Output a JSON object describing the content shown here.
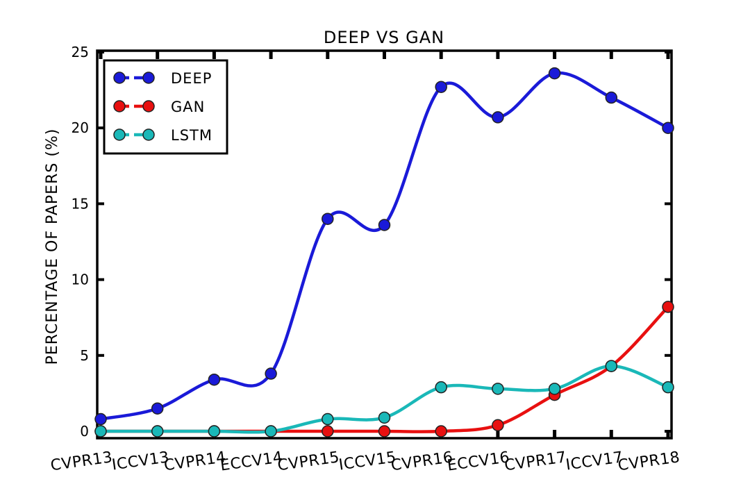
{
  "chart_data": {
    "type": "line",
    "title": "DEEP VS GAN",
    "xlabel": "",
    "ylabel": "PERCENTAGE OF PAPERS (%)",
    "ylim": [
      0,
      25
    ],
    "yticks": [
      0,
      5,
      10,
      15,
      20,
      25
    ],
    "grid": false,
    "legend_position": "top-left",
    "categories": [
      "CVPR13",
      "ICCV13",
      "CVPR14",
      "ECCV14",
      "CVPR15",
      "ICCV15",
      "CVPR16",
      "ECCV16",
      "CVPR17",
      "ICCV17",
      "CVPR18"
    ],
    "series": [
      {
        "name": "DEEP",
        "color": "#1a1ad8",
        "values": [
          0.8,
          1.5,
          3.4,
          3.8,
          14.0,
          13.6,
          22.7,
          20.7,
          23.6,
          22.0,
          20.0
        ]
      },
      {
        "name": "GAN",
        "color": "#e81010",
        "values": [
          0.0,
          0.0,
          0.0,
          0.0,
          0.0,
          0.0,
          0.0,
          0.4,
          2.4,
          4.3,
          8.2
        ]
      },
      {
        "name": "LSTM",
        "color": "#1ab8b8",
        "values": [
          0.0,
          0.0,
          0.0,
          0.0,
          0.8,
          0.9,
          2.9,
          2.8,
          2.8,
          4.3,
          2.9
        ]
      }
    ]
  }
}
